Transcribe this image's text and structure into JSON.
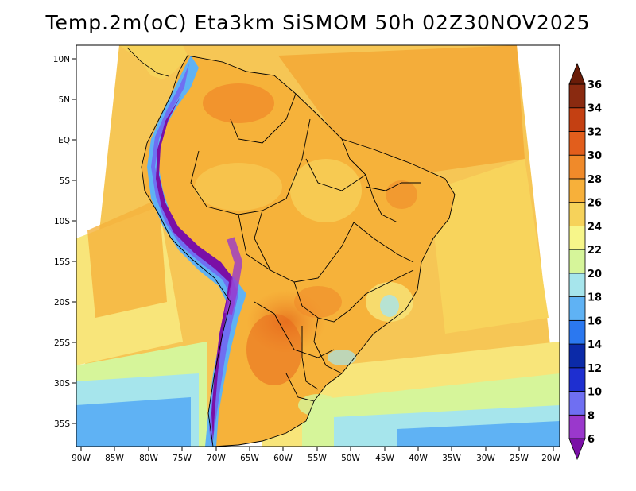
{
  "title": "Temp.2m(oC) Eta3km SiSMOM 50h 02Z30NOV2025",
  "map": {
    "lat_labels": [
      "10N",
      "5N",
      "EQ",
      "5S",
      "10S",
      "15S",
      "20S",
      "25S",
      "30S",
      "35S"
    ],
    "lon_labels": [
      "90W",
      "85W",
      "80W",
      "75W",
      "70W",
      "65W",
      "60W",
      "55W",
      "50W",
      "45W",
      "40W",
      "35W",
      "30W",
      "25W",
      "20W"
    ],
    "ocean_color": "#f7ae3c",
    "land_color": "#f6b23a"
  },
  "colorbar": {
    "labels": [
      "6",
      "8",
      "10",
      "12",
      "14",
      "16",
      "18",
      "20",
      "22",
      "24",
      "26",
      "28",
      "30",
      "32",
      "34",
      "36"
    ],
    "colors": [
      "#7a0fa6",
      "#9a38cc",
      "#6f6ff2",
      "#1e2fd0",
      "#0b2aa8",
      "#2b78f0",
      "#5fb2f4",
      "#a6e5ec",
      "#d6f59a",
      "#f7f68a",
      "#f6d25a",
      "#f7b03a",
      "#f08a2a",
      "#e25e1c",
      "#c44012",
      "#8a2a10",
      "#6a1c08"
    ]
  }
}
